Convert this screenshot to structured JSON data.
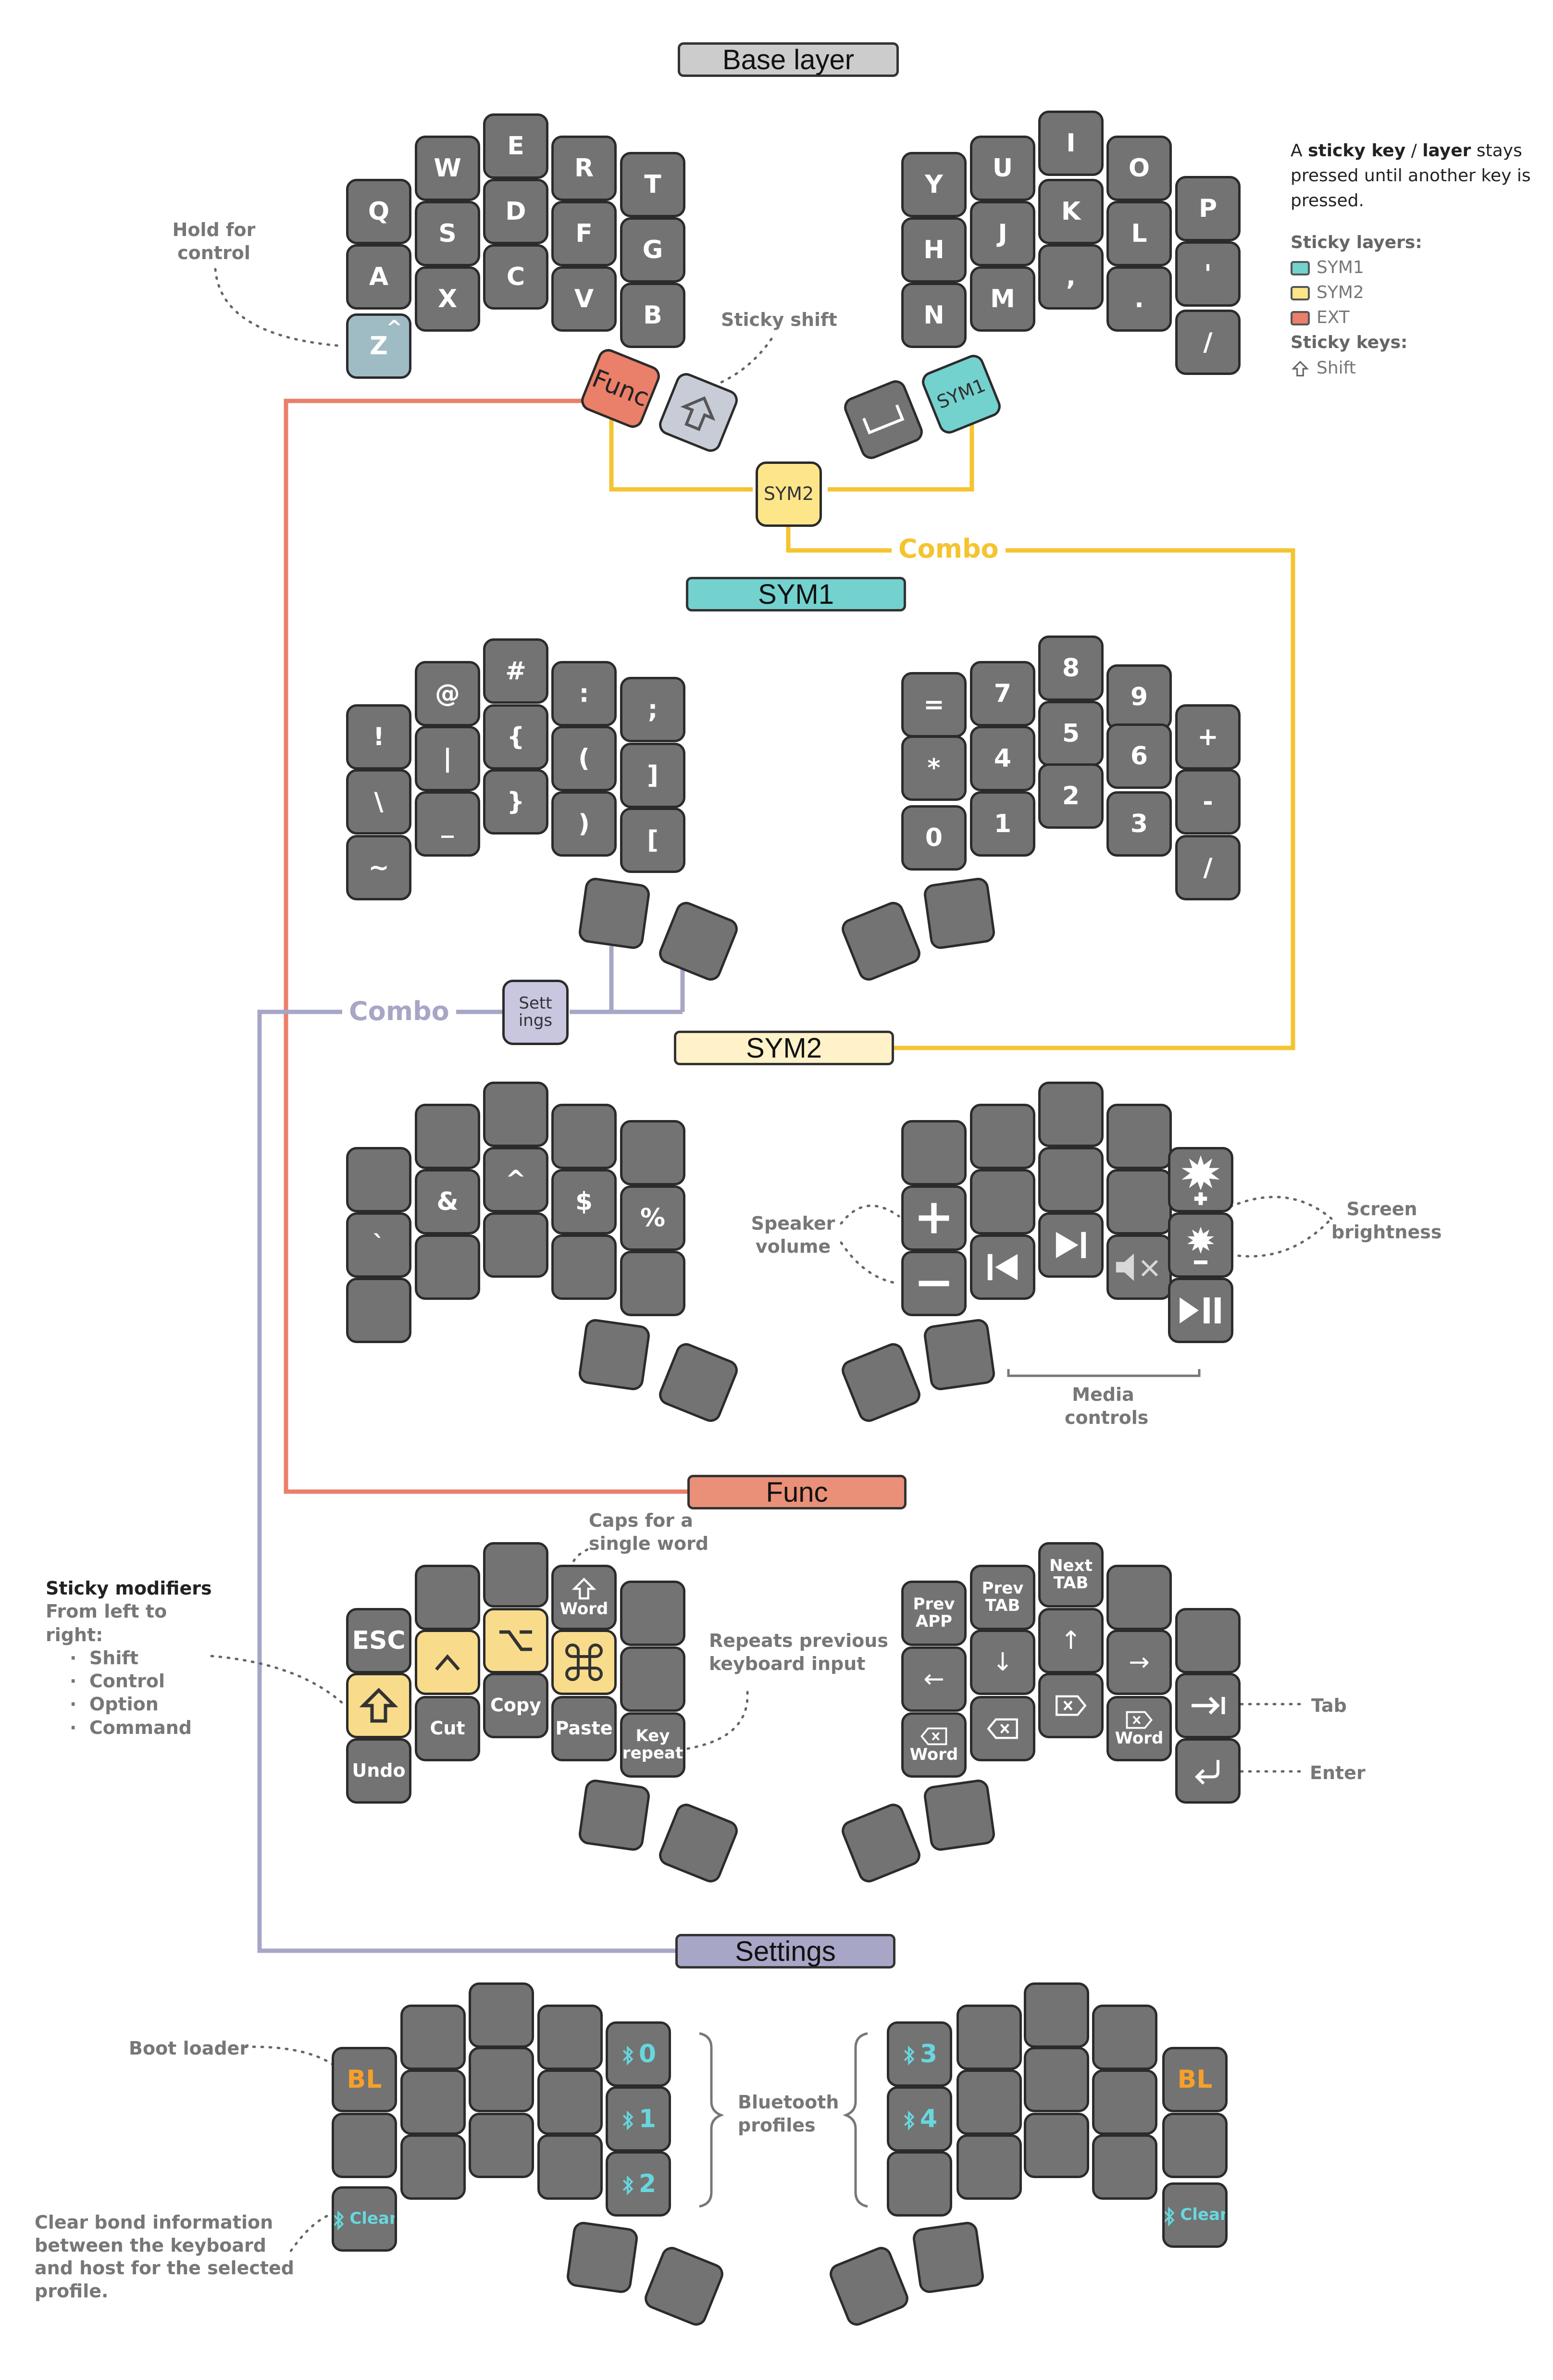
{
  "titles": {
    "base": "Base layer",
    "sym1": "SYM1",
    "sym2": "SYM2",
    "func": "Func",
    "settings": "Settings"
  },
  "colors": {
    "sym1": "#73d1ce",
    "sym2": "#fde68a",
    "func": "#ea7f6a",
    "settings": "#a7a6c6",
    "base_label": "#cccccc",
    "key": "#737373",
    "bluetooth": "#67d7dd",
    "bootloader": "#f6a02a"
  },
  "legend": {
    "intro_a": "A ",
    "intro_b": "sticky key",
    "intro_c": " / ",
    "intro_d": "layer",
    "intro_e": " stays pressed until another key is pressed.",
    "sticky_layers_heading": "Sticky layers:",
    "sticky_layers": [
      "SYM1",
      "SYM2",
      "EXT"
    ],
    "sticky_keys_heading": "Sticky keys:",
    "sticky_key_shift": "Shift",
    "shift_icon": "shift-arrow-icon"
  },
  "base": {
    "left": [
      "E",
      "W",
      "R",
      "T",
      "Q",
      "D",
      "S",
      "F",
      "G",
      "A",
      "C",
      "X",
      "V",
      "B"
    ],
    "right": [
      "I",
      "U",
      "O",
      "Y",
      "K",
      "P",
      "J",
      "L",
      "H",
      ",",
      "'",
      "M",
      ".",
      "N",
      "/"
    ],
    "z_key": "Z",
    "thumbs": {
      "func": "Func",
      "shift_icon": "shift-arrow-icon",
      "space_icon": "space-icon",
      "sym1": "SYM1"
    },
    "combo_key": "SYM2",
    "notes": {
      "hold_control": "Hold for control",
      "sticky_shift": "Sticky shift",
      "combo": "Combo"
    }
  },
  "sym1": {
    "left": [
      "#",
      "@",
      ":",
      ";",
      "!",
      "{",
      "|",
      "(",
      "]",
      "\\",
      "}",
      "_",
      ")",
      "[",
      "~"
    ],
    "right": [
      "8",
      "7",
      "9",
      "=",
      "5",
      "4",
      "6",
      "+",
      "*",
      "2",
      "1",
      "3",
      "-",
      "0",
      "/"
    ],
    "combo_key": "Sett ings",
    "notes": {
      "combo": "Combo"
    }
  },
  "sym2": {
    "left": [
      "&",
      "^",
      "$",
      "`",
      "%"
    ],
    "right": {
      "icons": [
        "volume-up-icon",
        "brightness-up-icon",
        "volume-down-icon",
        "previous-track-icon",
        "next-track-icon",
        "mute-icon",
        "brightness-down-icon",
        "play-pause-icon"
      ]
    },
    "notes": {
      "speaker": "Speaker volume",
      "brightness": "Screen brightness",
      "media": "Media controls"
    }
  },
  "func": {
    "left": {
      "esc": "ESC",
      "word_caps": "Word",
      "option_icon": "option-icon",
      "command_icon": "command-icon",
      "control_icon": "control-icon",
      "shift_icon": "shift-icon",
      "cut": "Cut",
      "copy": "Copy",
      "paste": "Paste",
      "key_repeat": "Key repeat",
      "undo": "Undo"
    },
    "right": {
      "next_tab": "Next TAB",
      "prev_app": "Prev APP",
      "prev_tab": "Prev TAB",
      "up": "↑",
      "left": "←",
      "down": "↓",
      "right": "→",
      "del_word": "Word",
      "backspace_word": "Word",
      "backspace_icon": "backspace-icon",
      "delete_icon": "delete-icon",
      "tab_icon": "tab-icon",
      "enter_icon": "enter-icon"
    },
    "notes": {
      "caps_word": "Caps for a single word",
      "repeat": "Repeats previous keyboard input",
      "tab": "Tab",
      "enter": "Enter",
      "sticky_heading": "Sticky modifiers",
      "sticky_sub": "From left to right:",
      "sticky_list": [
        "Shift",
        "Control",
        "Option",
        "Command"
      ]
    }
  },
  "settings": {
    "left": {
      "bl": "BL",
      "bt0": "0",
      "bt1": "1",
      "bt2": "2",
      "clear": "Clear"
    },
    "right": {
      "bt3": "3",
      "bt4": "4",
      "bl": "BL",
      "clear": "Clear"
    },
    "bluetooth_icon": "bluetooth-icon",
    "notes": {
      "boot": "Boot loader",
      "bt_profiles": "Bluetooth profiles",
      "clear_bond": "Clear bond information between the keyboard and host for the selected profile."
    }
  }
}
